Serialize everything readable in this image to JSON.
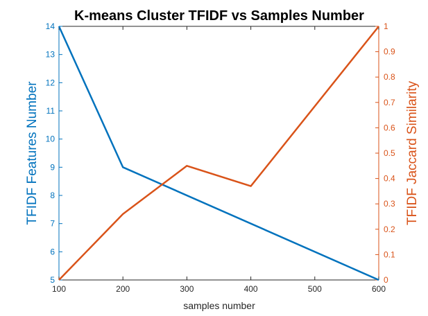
{
  "chart_data": {
    "type": "line",
    "title": "K-means Cluster TFIDF vs Samples Number",
    "xlabel": "samples number",
    "ylabel_left": "TFIDF Features Number",
    "ylabel_right": "TFIDF Jaccard Similarity",
    "xlim": [
      100,
      600
    ],
    "ylim_left": [
      5,
      14
    ],
    "ylim_right": [
      0,
      1
    ],
    "x_ticks": [
      "100",
      "200",
      "300",
      "400",
      "500",
      "600"
    ],
    "y_ticks_left": [
      "5",
      "6",
      "7",
      "8",
      "9",
      "10",
      "11",
      "12",
      "13",
      "14"
    ],
    "y_ticks_right": [
      "0",
      "0.1",
      "0.2",
      "0.3",
      "0.4",
      "0.5",
      "0.6",
      "0.7",
      "0.8",
      "0.9",
      "1"
    ],
    "grid": false,
    "series": [
      {
        "axis": "left",
        "color": "#0072BD",
        "x": [
          100,
          200,
          600
        ],
        "y": [
          14,
          9,
          5
        ]
      },
      {
        "axis": "right",
        "color": "#D95319",
        "x": [
          100,
          200,
          300,
          400,
          600
        ],
        "y": [
          0,
          0.26,
          0.45,
          0.37,
          1
        ]
      }
    ]
  }
}
